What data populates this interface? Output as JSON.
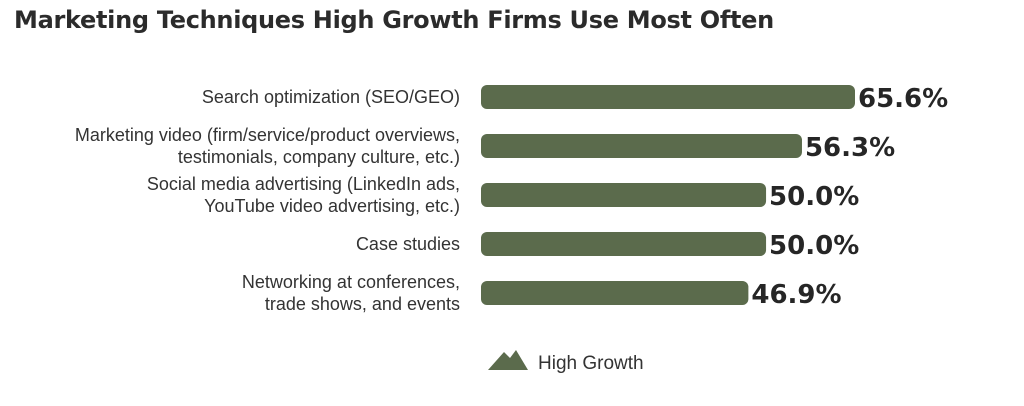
{
  "chart_data": {
    "type": "bar",
    "orientation": "horizontal",
    "title": "Marketing Techniques High Growth Firms Use Most Often",
    "categories": [
      [
        "Search optimization (SEO/GEO)"
      ],
      [
        "Marketing video (firm/service/product overviews,",
        "testimonials, company culture, etc.)"
      ],
      [
        "Social media advertising (LinkedIn ads,",
        "YouTube video advertising, etc.)"
      ],
      [
        "Case studies"
      ],
      [
        "Networking at conferences,",
        "trade shows, and events"
      ]
    ],
    "series": [
      {
        "name": "High Growth",
        "values": [
          65.6,
          56.3,
          50.0,
          50.0,
          46.9
        ],
        "value_labels": [
          "65.6%",
          "56.3%",
          "50.0%",
          "50.0%",
          "46.9%"
        ]
      }
    ],
    "xlim": [
      0,
      65.6
    ],
    "grid": false,
    "legend_position": "bottom",
    "colors": {
      "bar": "#5b6b4c",
      "legend_icon": "#5b6b4c"
    },
    "legend_icon": "mountain-icon"
  }
}
